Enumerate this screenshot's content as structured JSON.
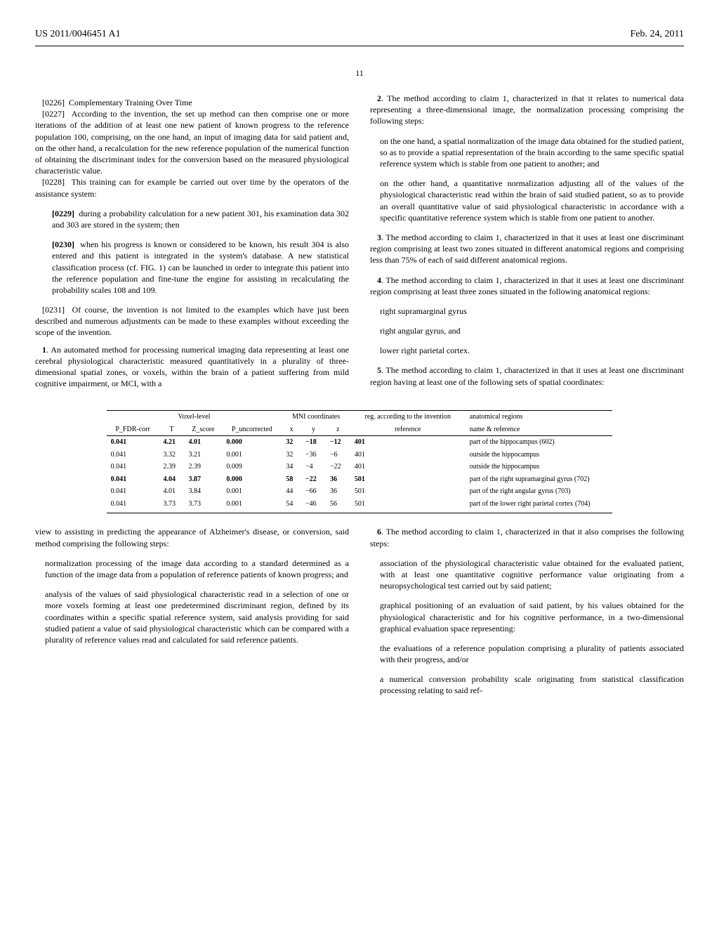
{
  "header": {
    "left": "US 2011/0046451 A1",
    "right": "Feb. 24, 2011"
  },
  "page_no": "11",
  "left": {
    "p0226_num": "[0226]",
    "p0226_text": "Complementary Training Over Time",
    "p0227_num": "[0227]",
    "p0227_text": "According to the invention, the set up method can then comprise one or more iterations of the addition of at least one new patient of known progress to the reference population 100, comprising, on the one hand, an input of imaging data for said patient and, on the other hand, a recalculation for the new reference population of the numerical function of obtaining the discriminant index for the conversion based on the measured physiological characteristic value.",
    "p0228_num": "[0228]",
    "p0228_text": "This training can for example be carried out over time by the operators of the assistance system:",
    "p0229_num": "[0229]",
    "p0229_text": "during a probability calculation for a new patient 301, his examination data 302 and 303 are stored in the system; then",
    "p0230_num": "[0230]",
    "p0230_text": "when his progress is known or considered to be known, his result 304 is also entered and this patient is integrated in the system's database. A new statistical classification process (cf. FIG. 1) can be launched in order to integrate this patient into the reference population and fine-tune the engine for assisting in recalculating the probability scales 108 and 109.",
    "p0231_num": "[0231]",
    "p0231_text": "Of course, the invention is not limited to the examples which have just been described and numerous adjustments can be made to these examples without exceeding the scope of the invention.",
    "claim1_num": "1",
    "claim1_text": ". An automated method for processing numerical imaging data representing at least one cerebral physiological characteristic measured quantitatively in a plurality of three-dimensional spatial zones, or voxels, within the brain of a patient suffering from mild cognitive impairment, or MCI, with a",
    "claim1_cont": "view to assisting in predicting the appearance of Alzheimer's disease, or conversion, said method comprising the following steps:",
    "claim1_s1": "normalization processing of the image data according to a standard determined as a function of the image data from a population of reference patients of known progress; and",
    "claim1_s2": "analysis of the values of said physiological characteristic read in a selection of one or more voxels forming at least one predetermined discriminant region, defined by its coordinates within a specific spatial reference system, said analysis providing for said studied patient a value of said physiological characteristic which can be compared with a plurality of reference values read and calculated for said reference patients."
  },
  "right": {
    "claim2_num": "2",
    "claim2_text": ". The method according to claim 1, characterized in that it relates to numerical data representing a three-dimensional image, the normalization processing comprising the following steps:",
    "claim2_s1": "on the one hand, a spatial normalization of the image data obtained for the studied patient, so as to provide a spatial representation of the brain according to the same specific spatial reference system which is stable from one patient to another; and",
    "claim2_s2": "on the other hand, a quantitative normalization adjusting all of the values of the physiological characteristic read within the brain of said studied patient, so as to provide an overall quantitative value of said physiological characteristic in accordance with a specific quantitative reference system which is stable from one patient to another.",
    "claim3_num": "3",
    "claim3_text": ". The method according to claim 1, characterized in that it uses at least one discriminant region comprising at least two zones situated in different anatomical regions and comprising less than 75% of each of said different anatomical regions.",
    "claim4_num": "4",
    "claim4_text": ". The method according to claim 1, characterized in that it uses at least one discriminant region comprising at least three zones situated in the following anatomical regions:",
    "claim4_s1": "right supramarginal gyrus",
    "claim4_s2": "right angular gyrus, and",
    "claim4_s3": "lower right parietal cortex.",
    "claim5_num": "5",
    "claim5_text": ". The method according to claim 1, characterized in that it uses at least one discriminant region having at least one of the following sets of spatial coordinates:",
    "claim6_num": "6",
    "claim6_text": ". The method according to claim 1, characterized in that it also comprises the following steps:",
    "claim6_s1": "association of the physiological characteristic value obtained for the evaluated patient, with at least one quantitative cognitive performance value originating from a neuropsychological test carried out by said patient;",
    "claim6_s2": "graphical positioning of an evaluation of said patient, by his values obtained for the physiological characteristic and for his cognitive performance, in a two-dimensional graphical evaluation space representing:",
    "claim6_s3": "the evaluations of a reference population comprising a plurality of patients associated with their progress, and/or",
    "claim6_s4": "a numerical conversion probability scale originating from statistical classification processing relating to said ref-"
  },
  "table": {
    "group_heads": [
      "Voxel-level",
      "MNI coordinates",
      "reg. according to the invention",
      "anatomical regions"
    ],
    "cols": [
      "P_FDR-corr",
      "T",
      "Z_score",
      "P_uncorrected",
      "x",
      "y",
      "z",
      "reference",
      "name & reference"
    ],
    "rows": [
      {
        "bold": true,
        "cells": [
          "0.041",
          "4.21",
          "4.01",
          "0.000",
          "32",
          "−18",
          "−12",
          "401",
          "part of the hippocampus (602)"
        ]
      },
      {
        "bold": false,
        "cells": [
          "0.041",
          "3.32",
          "3.21",
          "0.001",
          "32",
          "−36",
          "−6",
          "401",
          "outside the hippocampus"
        ]
      },
      {
        "bold": false,
        "cells": [
          "0.041",
          "2.39",
          "2.39",
          "0.009",
          "34",
          "−4",
          "−22",
          "401",
          "outside the hippocampus"
        ]
      },
      {
        "bold": true,
        "cells": [
          "0.041",
          "4.04",
          "3.87",
          "0.000",
          "58",
          "−22",
          "36",
          "501",
          "part of the right supramarginal gyrus (702)"
        ]
      },
      {
        "bold": false,
        "cells": [
          "0.041",
          "4.01",
          "3.84",
          "0.001",
          "44",
          "−66",
          "36",
          "501",
          "part of the right angular gyrus (703)"
        ]
      },
      {
        "bold": false,
        "cells": [
          "0.041",
          "3.73",
          "3.73",
          "0.001",
          "54",
          "−46",
          "56",
          "501",
          "part of the lower right parietal cortex (704)"
        ]
      }
    ]
  }
}
